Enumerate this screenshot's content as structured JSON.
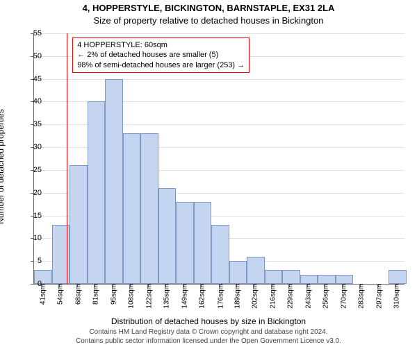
{
  "title_line1": "4, HOPPERSTYLE, BICKINGTON, BARNSTAPLE, EX31 2LA",
  "title_line2": "Size of property relative to detached houses in Bickington",
  "ylabel": "Number of detached properties",
  "xlabel": "Distribution of detached houses by size in Bickington",
  "credits_line1": "Contains HM Land Registry data © Crown copyright and database right 2024.",
  "credits_line2": "Contains public sector information licensed under the Open Government Licence v3.0.",
  "chart": {
    "type": "histogram",
    "ylim": [
      0,
      55
    ],
    "ytick_step": 5,
    "background_color": "#ffffff",
    "grid_color": "#e0e0e0",
    "axis_color": "#666666",
    "bar_fill": "#c5d5ef",
    "bar_border": "#7c98c6",
    "marker_line_color": "#ff0000",
    "marker_value": 60,
    "x_min": 35,
    "x_max": 317,
    "bar_bin_width": 13.5,
    "x_ticks": [
      41,
      54,
      68,
      81,
      95,
      108,
      122,
      135,
      149,
      162,
      176,
      189,
      202,
      216,
      229,
      243,
      256,
      270,
      283,
      297,
      310
    ],
    "x_tick_unit": "sqm",
    "bar_bin_starts": [
      35,
      48.5,
      62,
      75.5,
      89,
      102.5,
      116,
      129.5,
      143,
      156.5,
      170,
      183.5,
      197,
      210.5,
      224,
      237.5,
      251,
      264.5,
      278,
      291.5,
      305
    ],
    "bar_values": [
      3,
      13,
      26,
      40,
      45,
      33,
      33,
      21,
      18,
      18,
      13,
      5,
      6,
      3,
      3,
      2,
      2,
      2,
      0,
      0,
      3
    ],
    "label_fontsize": 12,
    "tick_fontsize": 11,
    "xtick_fontsize": 10
  },
  "annotation": {
    "line1": "4 HOPPERSTYLE: 60sqm",
    "line2": "← 2% of detached houses are smaller (5)",
    "line3": "98% of semi-detached houses are larger (253) →",
    "border_color": "#ff0000",
    "fontsize": 11
  }
}
